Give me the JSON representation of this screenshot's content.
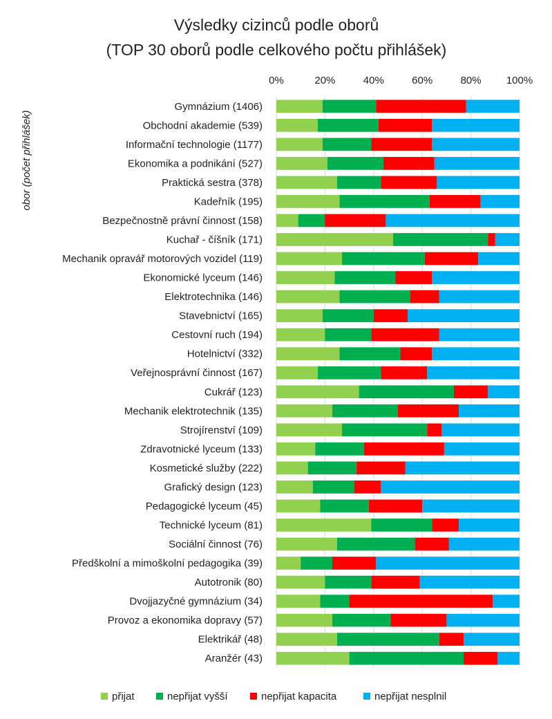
{
  "chart_data": {
    "type": "bar",
    "orientation": "horizontal",
    "stacked": "percent",
    "title": [
      "Výsledky cizinců podle oborů",
      "(TOP 30 oborů podle celkového počtu přihlášek)"
    ],
    "xlabel": "",
    "ylabel": "obor (počet přihlášek)",
    "xlim": [
      0,
      100
    ],
    "xticks": [
      "0%",
      "20%",
      "40%",
      "60%",
      "80%",
      "100%"
    ],
    "grid": true,
    "legend_position": "bottom",
    "categories": [
      "Gymnázium (1406)",
      "Obchodní akademie (539)",
      "Informační technologie (1177)",
      "Ekonomika a podnikání (527)",
      "Praktická sestra (378)",
      "Kadeřník (195)",
      "Bezpečnostně právní činnost (158)",
      "Kuchař - číšník (171)",
      "Mechanik opravář motorových vozidel (119)",
      "Ekonomické lyceum (146)",
      "Elektrotechnika (146)",
      "Stavebnictví (165)",
      "Cestovní ruch (194)",
      "Hotelnictví (332)",
      "Veřejnosprávní činnost (167)",
      "Cukrář (123)",
      "Mechanik elektrotechnik (135)",
      "Strojírenství (109)",
      "Zdravotnické lyceum (133)",
      "Kosmetické služby (222)",
      "Grafický design (123)",
      "Pedagogické lyceum (45)",
      "Technické lyceum (81)",
      "Sociální činnost (76)",
      "Předškolní a mimoškolní pedagogika (39)",
      "Autotronik (80)",
      "Dvojjazyčné gymnázium (34)",
      "Provoz a ekonomika dopravy (57)",
      "Elektrikář (48)",
      "Aranžér (43)"
    ],
    "series": [
      {
        "name": "přijat",
        "color": "#92d050",
        "values": [
          19,
          17,
          19,
          21,
          25,
          26,
          9,
          48,
          27,
          24,
          26,
          19,
          20,
          26,
          17,
          34,
          23,
          27,
          16,
          13,
          15,
          18,
          39,
          25,
          10,
          20,
          18,
          23,
          25,
          30
        ]
      },
      {
        "name": "nepřijat vyšší",
        "color": "#00b050",
        "values": [
          22,
          25,
          20,
          23,
          18,
          37,
          11,
          39,
          34,
          25,
          29,
          21,
          19,
          25,
          26,
          39,
          27,
          35,
          20,
          20,
          17,
          20,
          25,
          32,
          13,
          19,
          12,
          24,
          42,
          47
        ]
      },
      {
        "name": "nepřijat kapacita",
        "color": "#ff0000",
        "values": [
          37,
          22,
          25,
          21,
          23,
          21,
          25,
          3,
          22,
          15,
          12,
          14,
          28,
          13,
          19,
          14,
          25,
          6,
          33,
          20,
          11,
          22,
          11,
          14,
          18,
          20,
          59,
          23,
          10,
          14
        ]
      },
      {
        "name": "nepřijat nesplnil",
        "color": "#00b0f0",
        "values": [
          22,
          36,
          36,
          35,
          34,
          16,
          55,
          10,
          17,
          36,
          33,
          46,
          33,
          36,
          38,
          13,
          25,
          32,
          31,
          47,
          57,
          40,
          25,
          29,
          59,
          41,
          11,
          30,
          23,
          9
        ]
      }
    ]
  }
}
